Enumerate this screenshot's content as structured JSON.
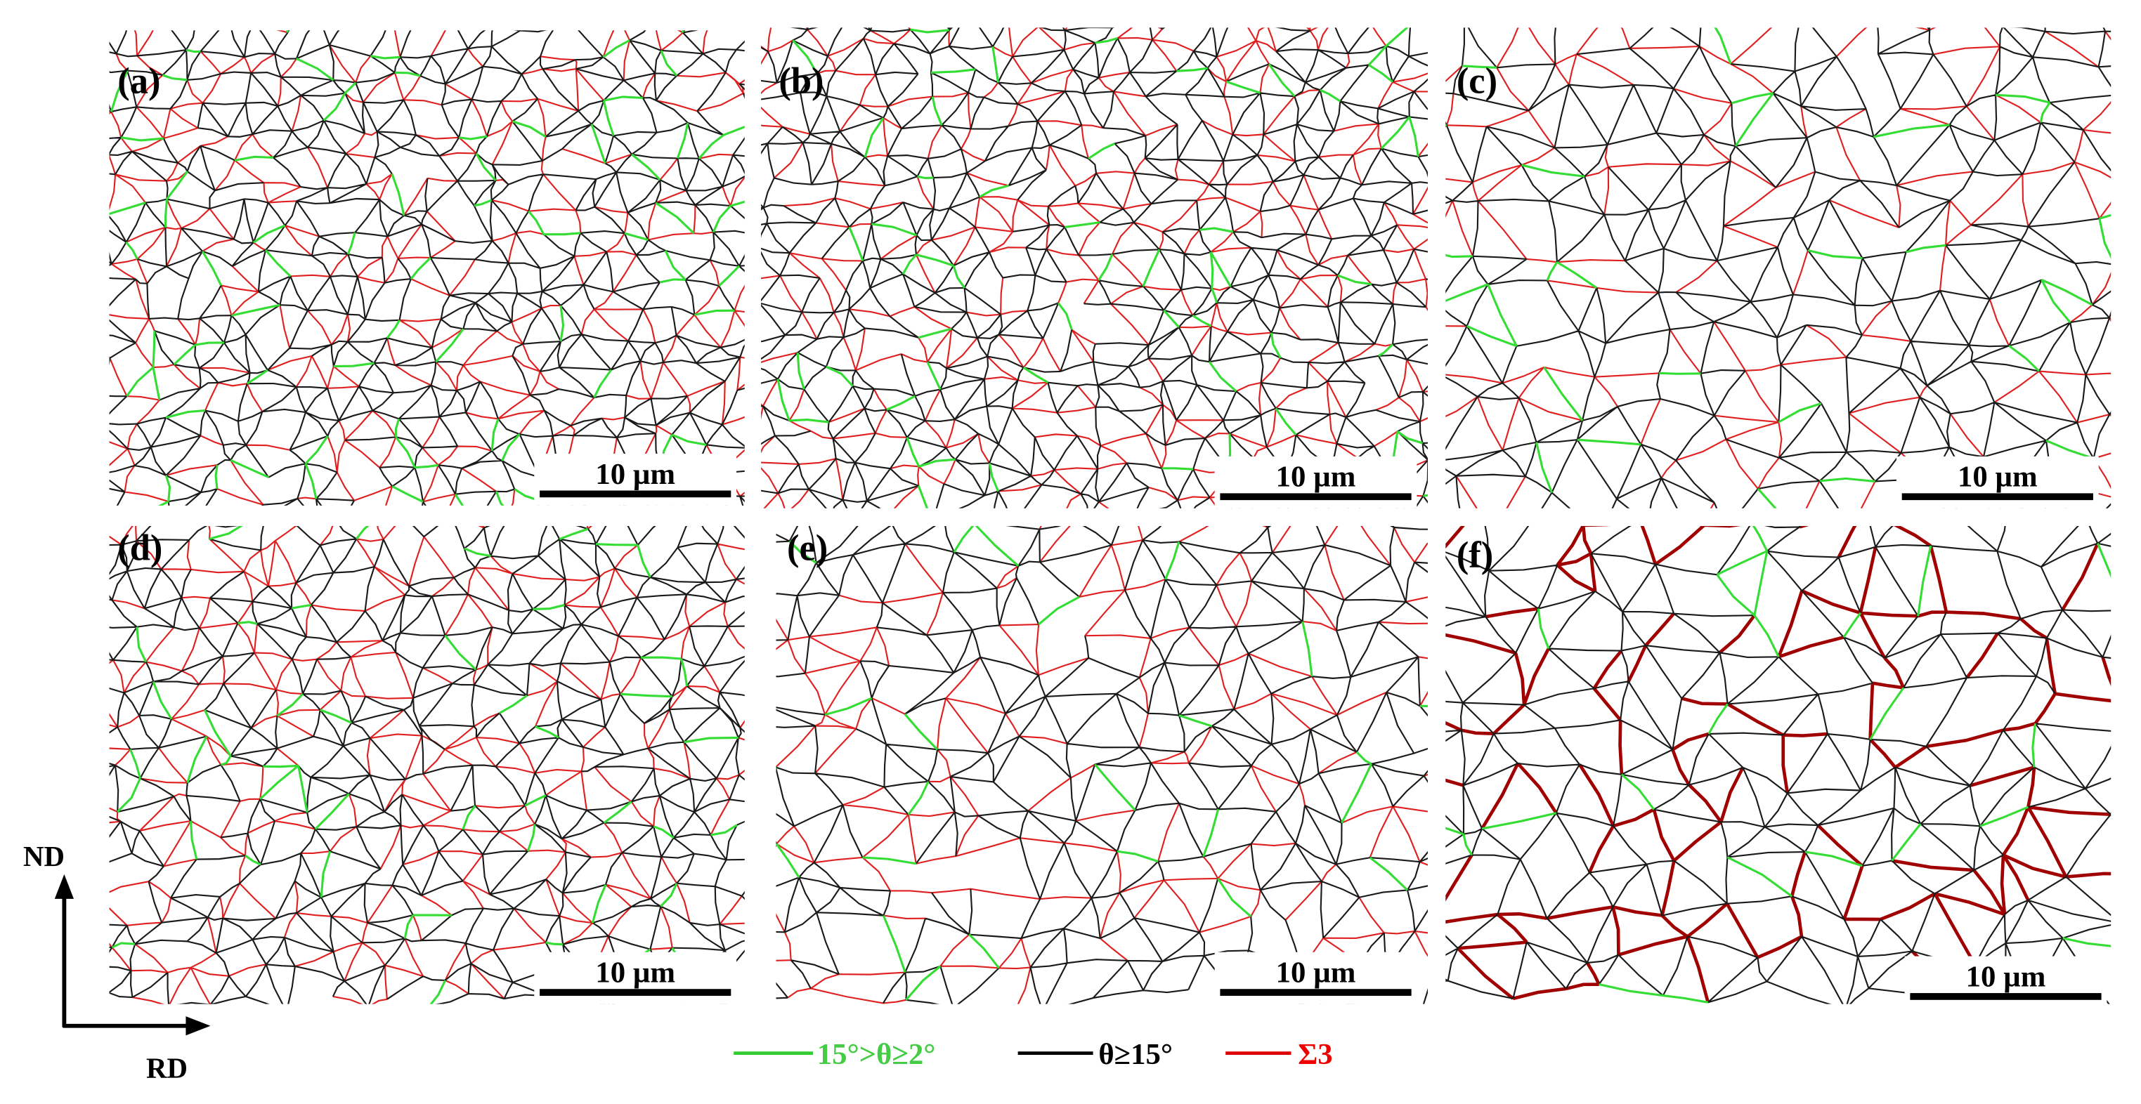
{
  "panels": [
    {
      "label": "(a)",
      "scale_bar": "10 µm"
    },
    {
      "label": "(b)",
      "scale_bar": "10 µm"
    },
    {
      "label": "(c)",
      "scale_bar": "10 µm"
    },
    {
      "label": "(d)",
      "scale_bar": "10 µm"
    },
    {
      "label": "(e)",
      "scale_bar": "10 µm"
    },
    {
      "label": "(f)",
      "scale_bar": "10 µm"
    }
  ],
  "legend": [
    {
      "label": "15°>θ≥2°"
    },
    {
      "label": "θ≥15°"
    },
    {
      "label": "Σ3"
    }
  ],
  "axes": {
    "vertical": "ND",
    "horizontal": "RD"
  }
}
